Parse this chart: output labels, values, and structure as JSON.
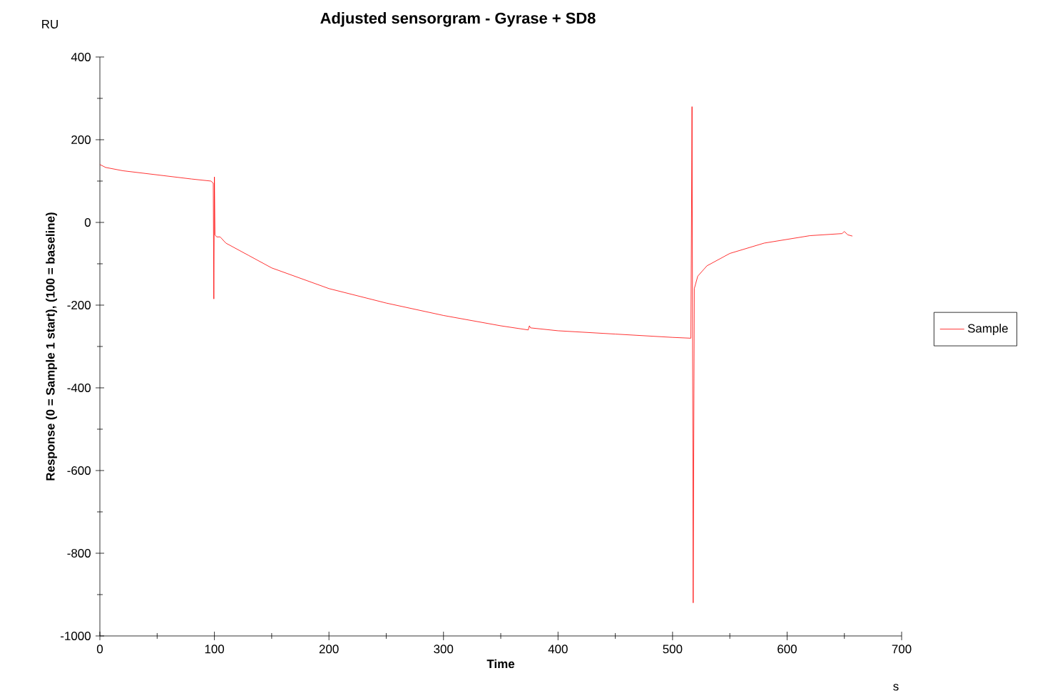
{
  "chart_data": {
    "type": "line",
    "title": "Adjusted sensorgram - Gyrase + SD8",
    "xlabel": "Time",
    "ylabel": "Response (0 = Sample 1 start), (100 = baseline)",
    "annotations": [
      "RU",
      "s"
    ],
    "xlim": [
      0,
      700
    ],
    "ylim": [
      -1000,
      400
    ],
    "xticks": [
      0,
      100,
      200,
      300,
      400,
      500,
      600,
      700
    ],
    "yticks": [
      -1000,
      -800,
      -600,
      -400,
      -200,
      0,
      200,
      400
    ],
    "x": [
      0,
      5,
      20,
      50,
      80,
      97,
      99,
      99.5,
      100,
      100.5,
      102,
      105,
      110,
      130,
      150,
      200,
      250,
      300,
      350,
      374,
      375,
      376,
      400,
      450,
      500,
      516,
      517,
      518,
      519,
      522,
      530,
      550,
      580,
      620,
      648,
      650,
      653,
      657
    ],
    "series": [
      {
        "name": "Sample",
        "color": "#ff0000",
        "values": [
          140,
          133,
          125,
          115,
          105,
          100,
          95,
          -185,
          110,
          -30,
          -35,
          -35,
          -50,
          -80,
          -110,
          -160,
          -195,
          -225,
          -250,
          -260,
          -250,
          -255,
          -262,
          -270,
          -278,
          -280,
          280,
          -920,
          -160,
          -130,
          -105,
          -75,
          -50,
          -32,
          -27,
          -22,
          -30,
          -33
        ]
      }
    ],
    "legend": "right",
    "grid": false,
    "marker": "none",
    "line_style": "solid"
  }
}
